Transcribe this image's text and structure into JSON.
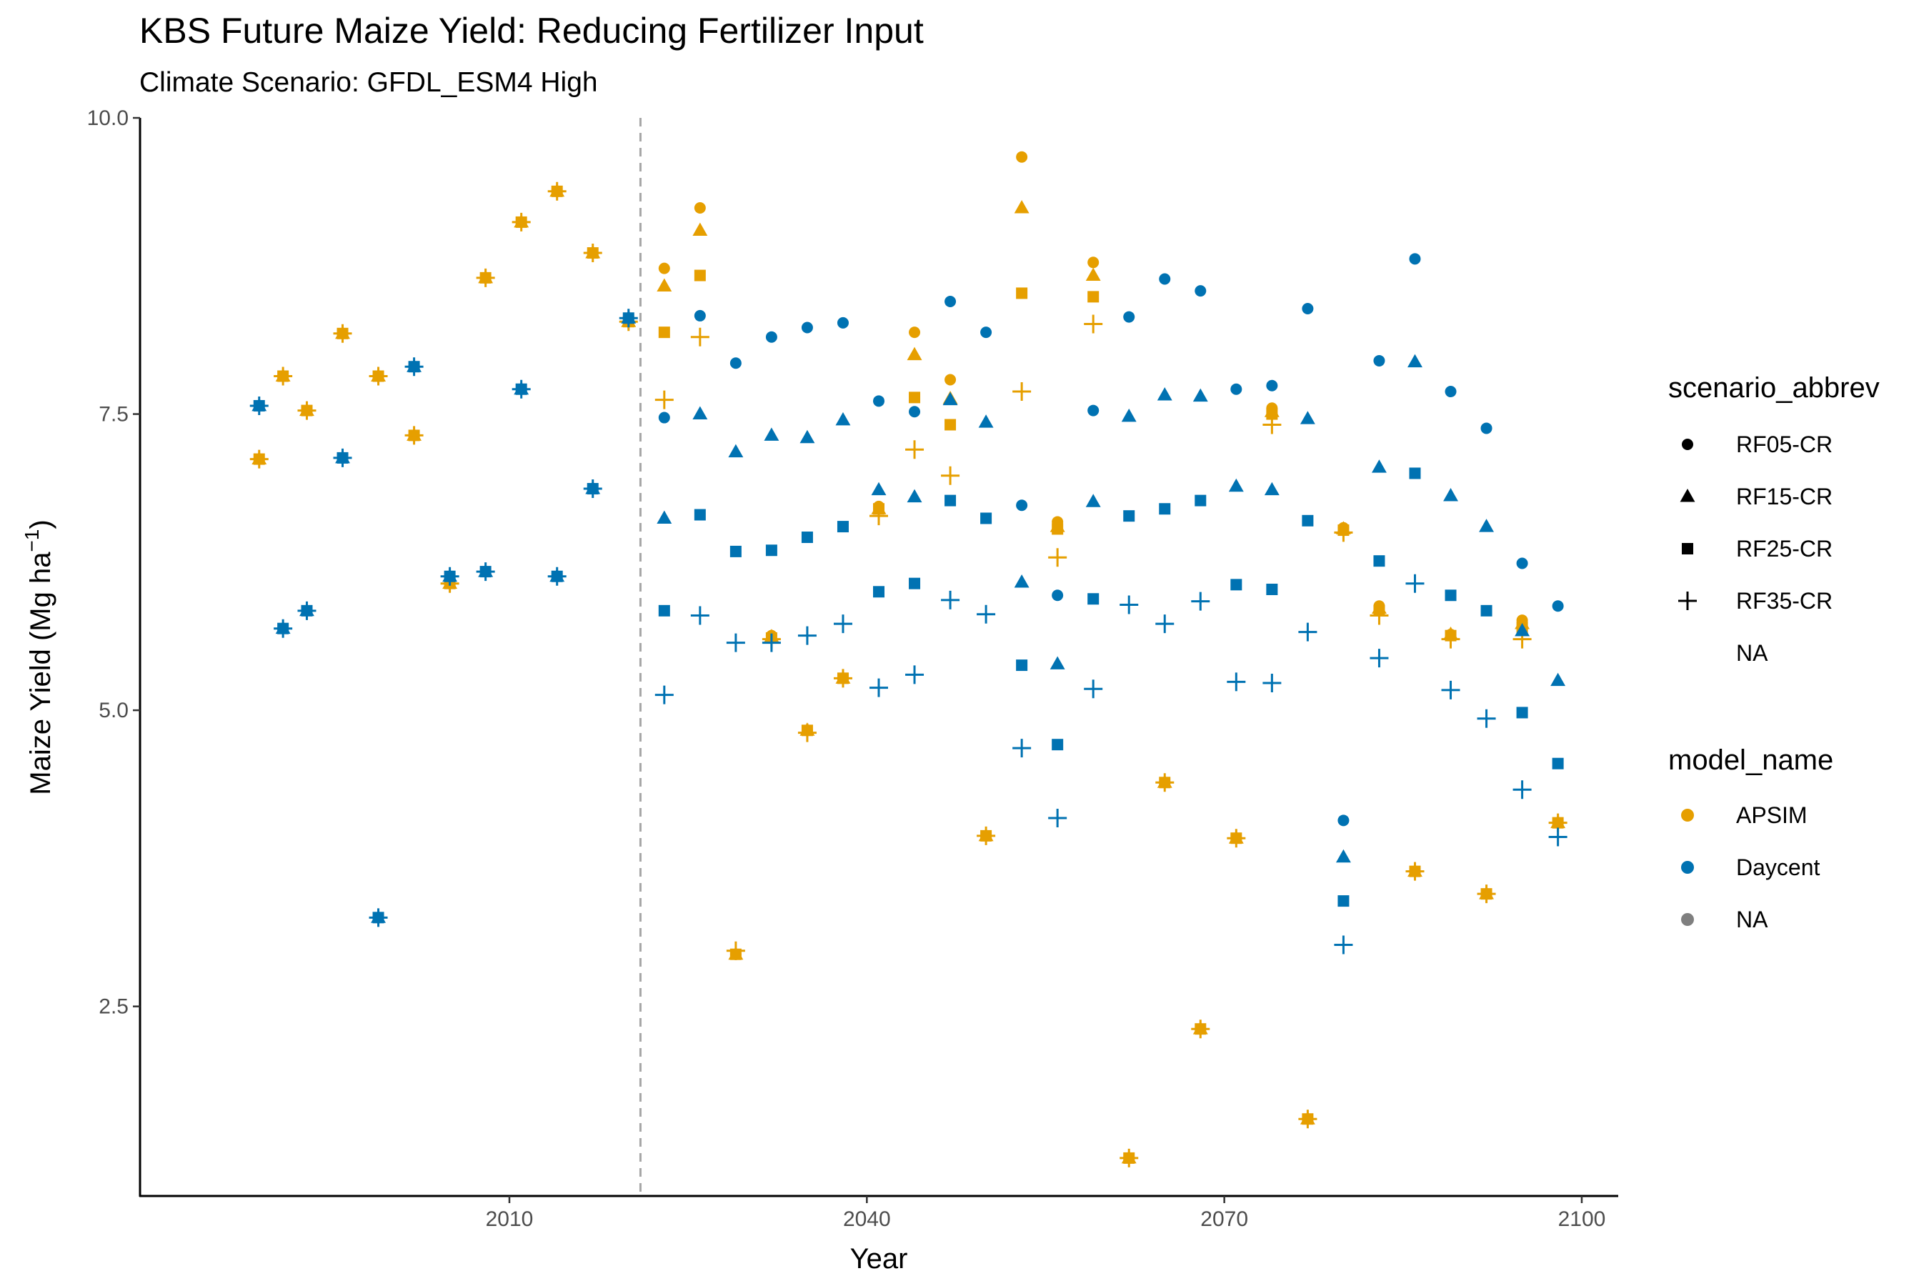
{
  "chart_data": {
    "type": "scatter",
    "title": "KBS Future Maize Yield: Reducing Fertilizer Input",
    "subtitle": "Climate Scenario: GFDL_ESM4 High",
    "xlabel": "Year",
    "ylabel_main": "Maize Yield (Mg ha",
    "ylabel_sup": "−1",
    "ylabel_close": ")",
    "xlim": [
      1979,
      2103
    ],
    "ylim": [
      0.9,
      10.0
    ],
    "x_ticks": [
      2010,
      2040,
      2070,
      2100
    ],
    "y_ticks": [
      2.5,
      5.0,
      7.5,
      10.0
    ],
    "y_tick_labels": [
      "2.5",
      "5.0",
      "7.5",
      "10.0"
    ],
    "grid": false,
    "vline": {
      "x": 2021,
      "style": "dashed",
      "color": "#a6a6a6"
    },
    "colors": {
      "APSIM": "#E69F00",
      "Daycent": "#0072B2",
      "NA": "#7f7f7f"
    },
    "legend": {
      "placement": "right",
      "shape_title": "scenario_abbrev",
      "shape_entries": [
        {
          "label": "RF05-CR",
          "shape": "circle"
        },
        {
          "label": "RF15-CR",
          "shape": "triangle"
        },
        {
          "label": "RF25-CR",
          "shape": "square"
        },
        {
          "label": "RF35-CR",
          "shape": "plus"
        },
        {
          "label": "NA",
          "shape": "none"
        }
      ],
      "color_title": "model_name",
      "color_entries": [
        {
          "label": "APSIM",
          "color": "#E69F00"
        },
        {
          "label": "Daycent",
          "color": "#0072B2"
        },
        {
          "label": "NA",
          "color": "#7f7f7f"
        }
      ]
    },
    "historical_points": [
      {
        "model": "APSIM",
        "x": [
          1989,
          1991,
          1993,
          1996,
          1999,
          2002,
          2005,
          2008,
          2011,
          2014,
          2017,
          2020
        ],
        "y": [
          7.12,
          7.82,
          7.53,
          8.18,
          7.82,
          7.32,
          6.07,
          8.65,
          9.12,
          9.38,
          8.86,
          8.28
        ]
      },
      {
        "model": "Daycent",
        "x": [
          1989,
          1991,
          1993,
          1996,
          1999,
          2002,
          2005,
          2008,
          2011,
          2014,
          2017,
          2020
        ],
        "y": [
          7.57,
          5.69,
          5.84,
          7.13,
          3.25,
          7.9,
          6.13,
          6.17,
          7.71,
          6.13,
          6.87,
          8.31
        ]
      }
    ],
    "series": [
      {
        "model": "APSIM",
        "scenario": "RF05-CR",
        "x": [
          2023,
          2026,
          2029,
          2032,
          2035,
          2038,
          2041,
          2044,
          2047,
          2050,
          2053,
          2056,
          2059,
          2062,
          2065,
          2068,
          2071,
          2074,
          2077,
          2080,
          2083,
          2086,
          2089,
          2092,
          2095,
          2098
        ],
        "y": [
          8.73,
          9.24,
          2.94,
          5.63,
          4.83,
          5.27,
          6.72,
          8.19,
          7.79,
          3.94,
          9.67,
          6.59,
          8.78,
          1.22,
          4.39,
          2.31,
          3.92,
          7.55,
          1.55,
          6.54,
          5.88,
          3.64,
          5.64,
          3.45,
          5.76,
          4.05
        ]
      },
      {
        "model": "APSIM",
        "scenario": "RF15-CR",
        "x": [
          2023,
          2026,
          2029,
          2032,
          2035,
          2038,
          2041,
          2044,
          2047,
          2050,
          2053,
          2056,
          2059,
          2062,
          2065,
          2068,
          2071,
          2074,
          2077,
          2080,
          2083,
          2086,
          2089,
          2092,
          2095,
          2098
        ],
        "y": [
          8.58,
          9.05,
          2.94,
          5.62,
          4.83,
          5.27,
          6.7,
          8.0,
          7.63,
          3.94,
          9.24,
          6.55,
          8.67,
          1.22,
          4.39,
          2.31,
          3.92,
          7.52,
          1.55,
          6.53,
          5.86,
          3.64,
          5.64,
          3.45,
          5.73,
          4.05
        ]
      },
      {
        "model": "APSIM",
        "scenario": "RF25-CR",
        "x": [
          2023,
          2026,
          2029,
          2032,
          2035,
          2038,
          2041,
          2044,
          2047,
          2050,
          2053,
          2056,
          2059,
          2062,
          2065,
          2068,
          2071,
          2074,
          2077,
          2080,
          2083,
          2086,
          2089,
          2092,
          2095,
          2098
        ],
        "y": [
          8.19,
          8.67,
          2.94,
          5.61,
          4.83,
          5.27,
          6.7,
          7.64,
          7.41,
          3.94,
          8.52,
          6.53,
          8.49,
          1.22,
          4.39,
          2.31,
          3.92,
          7.5,
          1.55,
          6.52,
          5.84,
          3.64,
          5.63,
          3.45,
          5.7,
          4.05
        ]
      },
      {
        "model": "APSIM",
        "scenario": "RF35-CR",
        "x": [
          2023,
          2026,
          2029,
          2032,
          2035,
          2038,
          2041,
          2044,
          2047,
          2050,
          2053,
          2056,
          2059,
          2062,
          2065,
          2068,
          2071,
          2074,
          2077,
          2080,
          2083,
          2086,
          2089,
          2092,
          2095,
          2098
        ],
        "y": [
          7.62,
          8.15,
          2.97,
          5.6,
          4.81,
          5.27,
          6.64,
          7.2,
          6.98,
          3.94,
          7.69,
          6.29,
          8.26,
          1.22,
          4.39,
          2.31,
          3.92,
          7.41,
          1.55,
          6.5,
          5.8,
          3.64,
          5.6,
          3.45,
          5.6,
          4.05
        ]
      },
      {
        "model": "Daycent",
        "scenario": "RF05-CR",
        "x": [
          2023,
          2026,
          2029,
          2032,
          2035,
          2038,
          2041,
          2044,
          2047,
          2050,
          2053,
          2056,
          2059,
          2062,
          2065,
          2068,
          2071,
          2074,
          2077,
          2080,
          2083,
          2086,
          2089,
          2092,
          2095,
          2098
        ],
        "y": [
          7.47,
          8.33,
          7.93,
          8.15,
          8.23,
          8.27,
          7.61,
          7.52,
          8.45,
          8.19,
          6.73,
          5.97,
          7.53,
          8.32,
          8.64,
          8.54,
          7.71,
          7.74,
          8.39,
          4.07,
          7.95,
          8.81,
          7.69,
          7.38,
          6.24,
          5.88
        ]
      },
      {
        "model": "Daycent",
        "scenario": "RF15-CR",
        "x": [
          2023,
          2026,
          2029,
          2032,
          2035,
          2038,
          2041,
          2044,
          2047,
          2050,
          2053,
          2056,
          2059,
          2062,
          2065,
          2068,
          2071,
          2074,
          2077,
          2080,
          2083,
          2086,
          2089,
          2092,
          2095,
          2098
        ],
        "y": [
          6.62,
          7.5,
          7.18,
          7.32,
          7.3,
          7.45,
          6.86,
          6.8,
          7.62,
          7.43,
          6.08,
          5.39,
          6.76,
          7.48,
          7.66,
          7.65,
          6.89,
          6.86,
          7.46,
          3.76,
          7.05,
          7.94,
          6.81,
          6.55,
          5.67,
          5.25
        ]
      },
      {
        "model": "Daycent",
        "scenario": "RF25-CR",
        "x": [
          2023,
          2026,
          2029,
          2032,
          2035,
          2038,
          2041,
          2044,
          2047,
          2050,
          2053,
          2056,
          2059,
          2062,
          2065,
          2068,
          2071,
          2074,
          2077,
          2080,
          2083,
          2086,
          2089,
          2092,
          2095,
          2098
        ],
        "y": [
          5.84,
          6.65,
          6.34,
          6.35,
          6.46,
          6.55,
          6.0,
          6.07,
          6.77,
          6.62,
          5.38,
          4.71,
          5.94,
          6.64,
          6.7,
          6.77,
          6.06,
          6.02,
          6.6,
          3.39,
          6.26,
          7.0,
          5.97,
          5.84,
          4.98,
          4.55
        ]
      },
      {
        "model": "Daycent",
        "scenario": "RF35-CR",
        "x": [
          2023,
          2026,
          2029,
          2032,
          2035,
          2038,
          2041,
          2044,
          2047,
          2050,
          2053,
          2056,
          2059,
          2062,
          2065,
          2068,
          2071,
          2074,
          2077,
          2080,
          2083,
          2086,
          2089,
          2092,
          2095,
          2098
        ],
        "y": [
          5.13,
          5.8,
          5.57,
          5.57,
          5.63,
          5.73,
          5.19,
          5.3,
          5.93,
          5.81,
          4.68,
          4.09,
          5.18,
          5.89,
          5.73,
          5.92,
          5.24,
          5.23,
          5.66,
          3.02,
          5.44,
          6.07,
          5.17,
          4.93,
          4.33,
          3.93
        ]
      }
    ]
  }
}
